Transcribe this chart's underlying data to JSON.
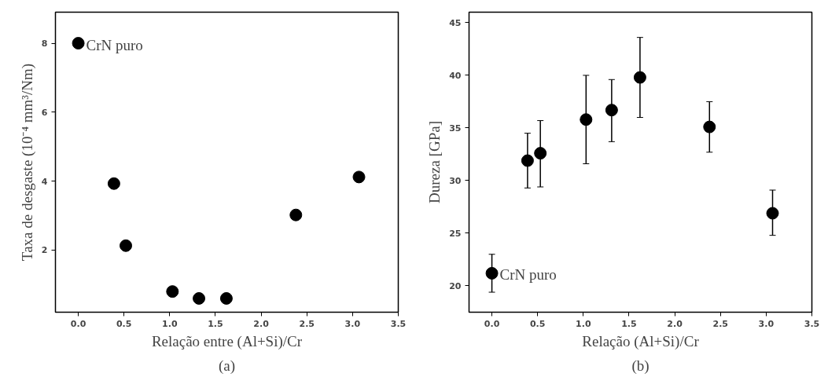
{
  "chart_data": [
    {
      "type": "scatter",
      "xlabel": "Relação entre (Al+Si)/Cr",
      "ylabel": "Taxa de desgaste (10⁻⁴ mm³/Nm)",
      "marker": "circle",
      "grid": false,
      "x": [
        0.0,
        0.39,
        0.52,
        1.03,
        1.32,
        1.62,
        2.38,
        3.07
      ],
      "series": [
        {
          "color": "#000000",
          "values": [
            8.0,
            3.93,
            2.13,
            0.8,
            0.6,
            0.6,
            3.02,
            4.12
          ]
        }
      ],
      "xlim": [
        -0.25,
        3.5
      ],
      "ylim": [
        0.2,
        8.9
      ],
      "xticks": [
        {
          "value": 0,
          "label": "0.0"
        },
        0.5,
        {
          "value": 1,
          "label": "1.0"
        },
        1.5,
        {
          "value": 2,
          "label": "2.0"
        },
        2.5,
        {
          "value": 3,
          "label": "3.0"
        },
        3.5
      ],
      "yticks": [
        2,
        4,
        6,
        8
      ],
      "annotations": [
        {
          "text": "CrN puro",
          "x": 0.0,
          "y": 8.0
        },
        "(a)"
      ]
    },
    {
      "type": "scatter",
      "xlabel": "Relação (Al+Si)/Cr",
      "ylabel": "Dureza [GPa]",
      "marker": "circle",
      "grid": false,
      "x": [
        0.0,
        0.39,
        0.53,
        1.03,
        1.31,
        1.62,
        2.38,
        3.07
      ],
      "series": [
        {
          "color": "#000000",
          "values": [
            21.2,
            31.9,
            32.6,
            35.8,
            36.7,
            39.8,
            35.1,
            26.9
          ],
          "errors": [
            [
              19.4,
              23.0
            ],
            [
              29.3,
              34.5
            ],
            [
              29.4,
              35.7
            ],
            [
              31.6,
              40.0
            ],
            [
              33.7,
              39.6
            ],
            [
              36.0,
              43.6
            ],
            [
              32.7,
              37.5
            ],
            [
              24.8,
              29.1
            ]
          ]
        }
      ],
      "xlim": [
        -0.25,
        3.5
      ],
      "ylim": [
        17.5,
        46
      ],
      "xticks": [
        {
          "value": 0,
          "label": "0.0"
        },
        0.5,
        {
          "value": 1,
          "label": "1.0"
        },
        1.5,
        {
          "value": 2,
          "label": "2.0"
        },
        2.5,
        {
          "value": 3,
          "label": "3.0"
        },
        3.5
      ],
      "yticks": [
        20,
        25,
        30,
        35,
        40,
        45
      ],
      "annotations": [
        {
          "text": "CrN puro",
          "x": 0.0,
          "y": 21.2
        },
        "(b)"
      ]
    }
  ]
}
